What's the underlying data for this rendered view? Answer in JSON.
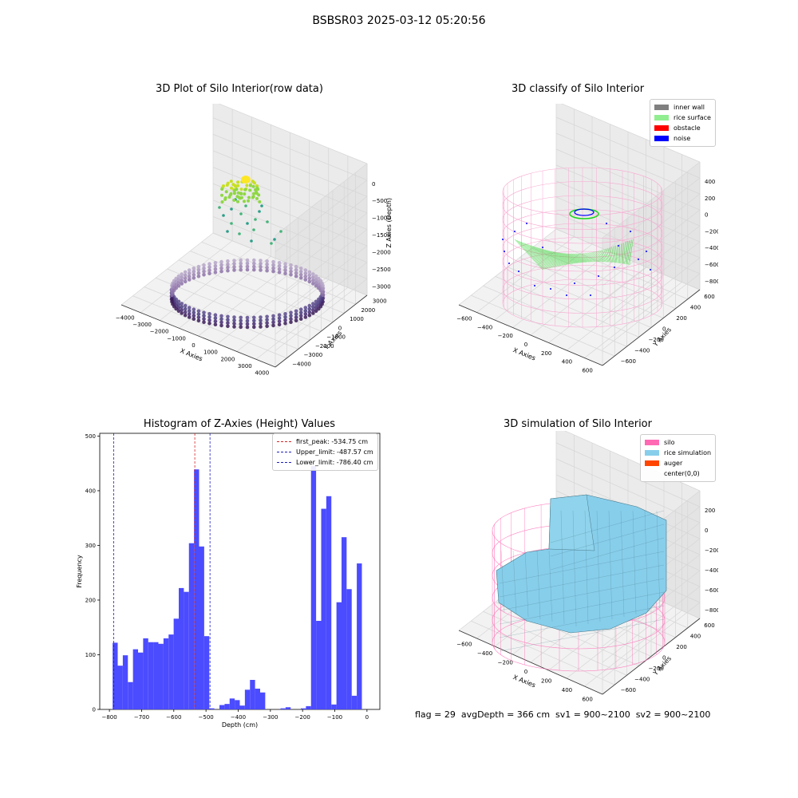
{
  "figure": {
    "suptitle": "BSBSR03 2025-03-12 05:20:56",
    "footer": "flag = 29  avgDepth = 366 cm  sv1 = 900~2100  sv2 = 900~2100"
  },
  "chart_data": [
    {
      "type": "scatter",
      "title": "3D Plot of Silo Interior(row data)",
      "xlabel": "X Axies",
      "ylabel": "Y Axies",
      "zlabel": "Z Axies (Depth)",
      "x_ticks": [
        "−4000",
        "−3000",
        "−2000",
        "−1000",
        "0",
        "1000",
        "2000",
        "3000",
        "4000"
      ],
      "y_ticks": [
        "3000",
        "2000",
        "1000",
        "0",
        "−1000",
        "−2000",
        "−3000",
        "−4000"
      ],
      "z_ticks": [
        "0",
        "−500",
        "−1000",
        "−1500",
        "−2000",
        "−2500",
        "−3000"
      ],
      "xlim": [
        -4000,
        4000
      ],
      "ylim": [
        -4000,
        4000
      ],
      "zlim": [
        -3300,
        200
      ],
      "ring_radius": 2800,
      "ring_depth": -3000,
      "peak_height": -600,
      "colormap": "viridis"
    },
    {
      "type": "scatter",
      "title": "3D classify of Silo Interior",
      "xlabel": "X Axies",
      "ylabel": "Y Axies",
      "zlabel": "Z Axies (Depth)",
      "x_ticks": [
        "−600",
        "−400",
        "−200",
        "0",
        "200",
        "400",
        "600"
      ],
      "y_ticks": [
        "600",
        "400",
        "200",
        "0",
        "−200",
        "−400",
        "−600"
      ],
      "z_ticks": [
        "400",
        "200",
        "0",
        "−200",
        "−400",
        "−600",
        "−800"
      ],
      "legend": [
        {
          "label": "inner wall",
          "color": "#808080"
        },
        {
          "label": "rice surface",
          "color": "#90ee90"
        },
        {
          "label": "obstacle",
          "color": "#ff0000"
        },
        {
          "label": "noise",
          "color": "#0000ff"
        }
      ]
    },
    {
      "type": "bar",
      "title": "Histogram of Z-Axies (Height) Values",
      "xlabel": "Depth (cm)",
      "ylabel": "Frequency",
      "xlim": [
        -830,
        40
      ],
      "ylim": [
        0,
        505
      ],
      "x_ticks": [
        -800,
        -700,
        -600,
        -500,
        -400,
        -300,
        -200,
        -100,
        0
      ],
      "y_ticks": [
        0,
        100,
        200,
        300,
        400,
        500
      ],
      "bar_color": "#4b4bff",
      "bin_start": -790,
      "bin_width": 15.8,
      "values": [
        122,
        80,
        99,
        50,
        110,
        104,
        130,
        123,
        123,
        120,
        130,
        137,
        166,
        222,
        215,
        304,
        439,
        298,
        134,
        2,
        0,
        8,
        10,
        20,
        17,
        7,
        36,
        54,
        38,
        31,
        0,
        0,
        0,
        2,
        4,
        0,
        0,
        2,
        6,
        445,
        162,
        367,
        390,
        9,
        196,
        315,
        220,
        25,
        267
      ],
      "vlines": [
        {
          "x": -534.75,
          "label": "first_peak: -534.75 cm",
          "color": "#d62728"
        },
        {
          "x": -487.57,
          "label": "Upper_limit: -487.57 cm",
          "color": "#1f1fbf"
        },
        {
          "x": -786.4,
          "label": "Lower_limit: -786.40 cm",
          "color": "#1f1fbf"
        }
      ]
    },
    {
      "type": "other",
      "title": "3D simulation of Silo Interior",
      "xlabel": "X Axies",
      "ylabel": "Y Axies",
      "zlabel": "Z Axies (Depth)",
      "x_ticks": [
        "−600",
        "−400",
        "−200",
        "0",
        "200",
        "400",
        "600"
      ],
      "y_ticks": [
        "600",
        "400",
        "200",
        "0",
        "−200",
        "−400",
        "−600"
      ],
      "z_ticks": [
        "200",
        "0",
        "−200",
        "−400",
        "−600",
        "−800"
      ],
      "legend": [
        {
          "label": "silo",
          "color": "#ff69b4"
        },
        {
          "label": "rice simulation",
          "color": "#87ceeb"
        },
        {
          "label": "auger",
          "color": "#ff4500"
        },
        {
          "label": "center(0,0)",
          "color": ""
        }
      ]
    }
  ]
}
